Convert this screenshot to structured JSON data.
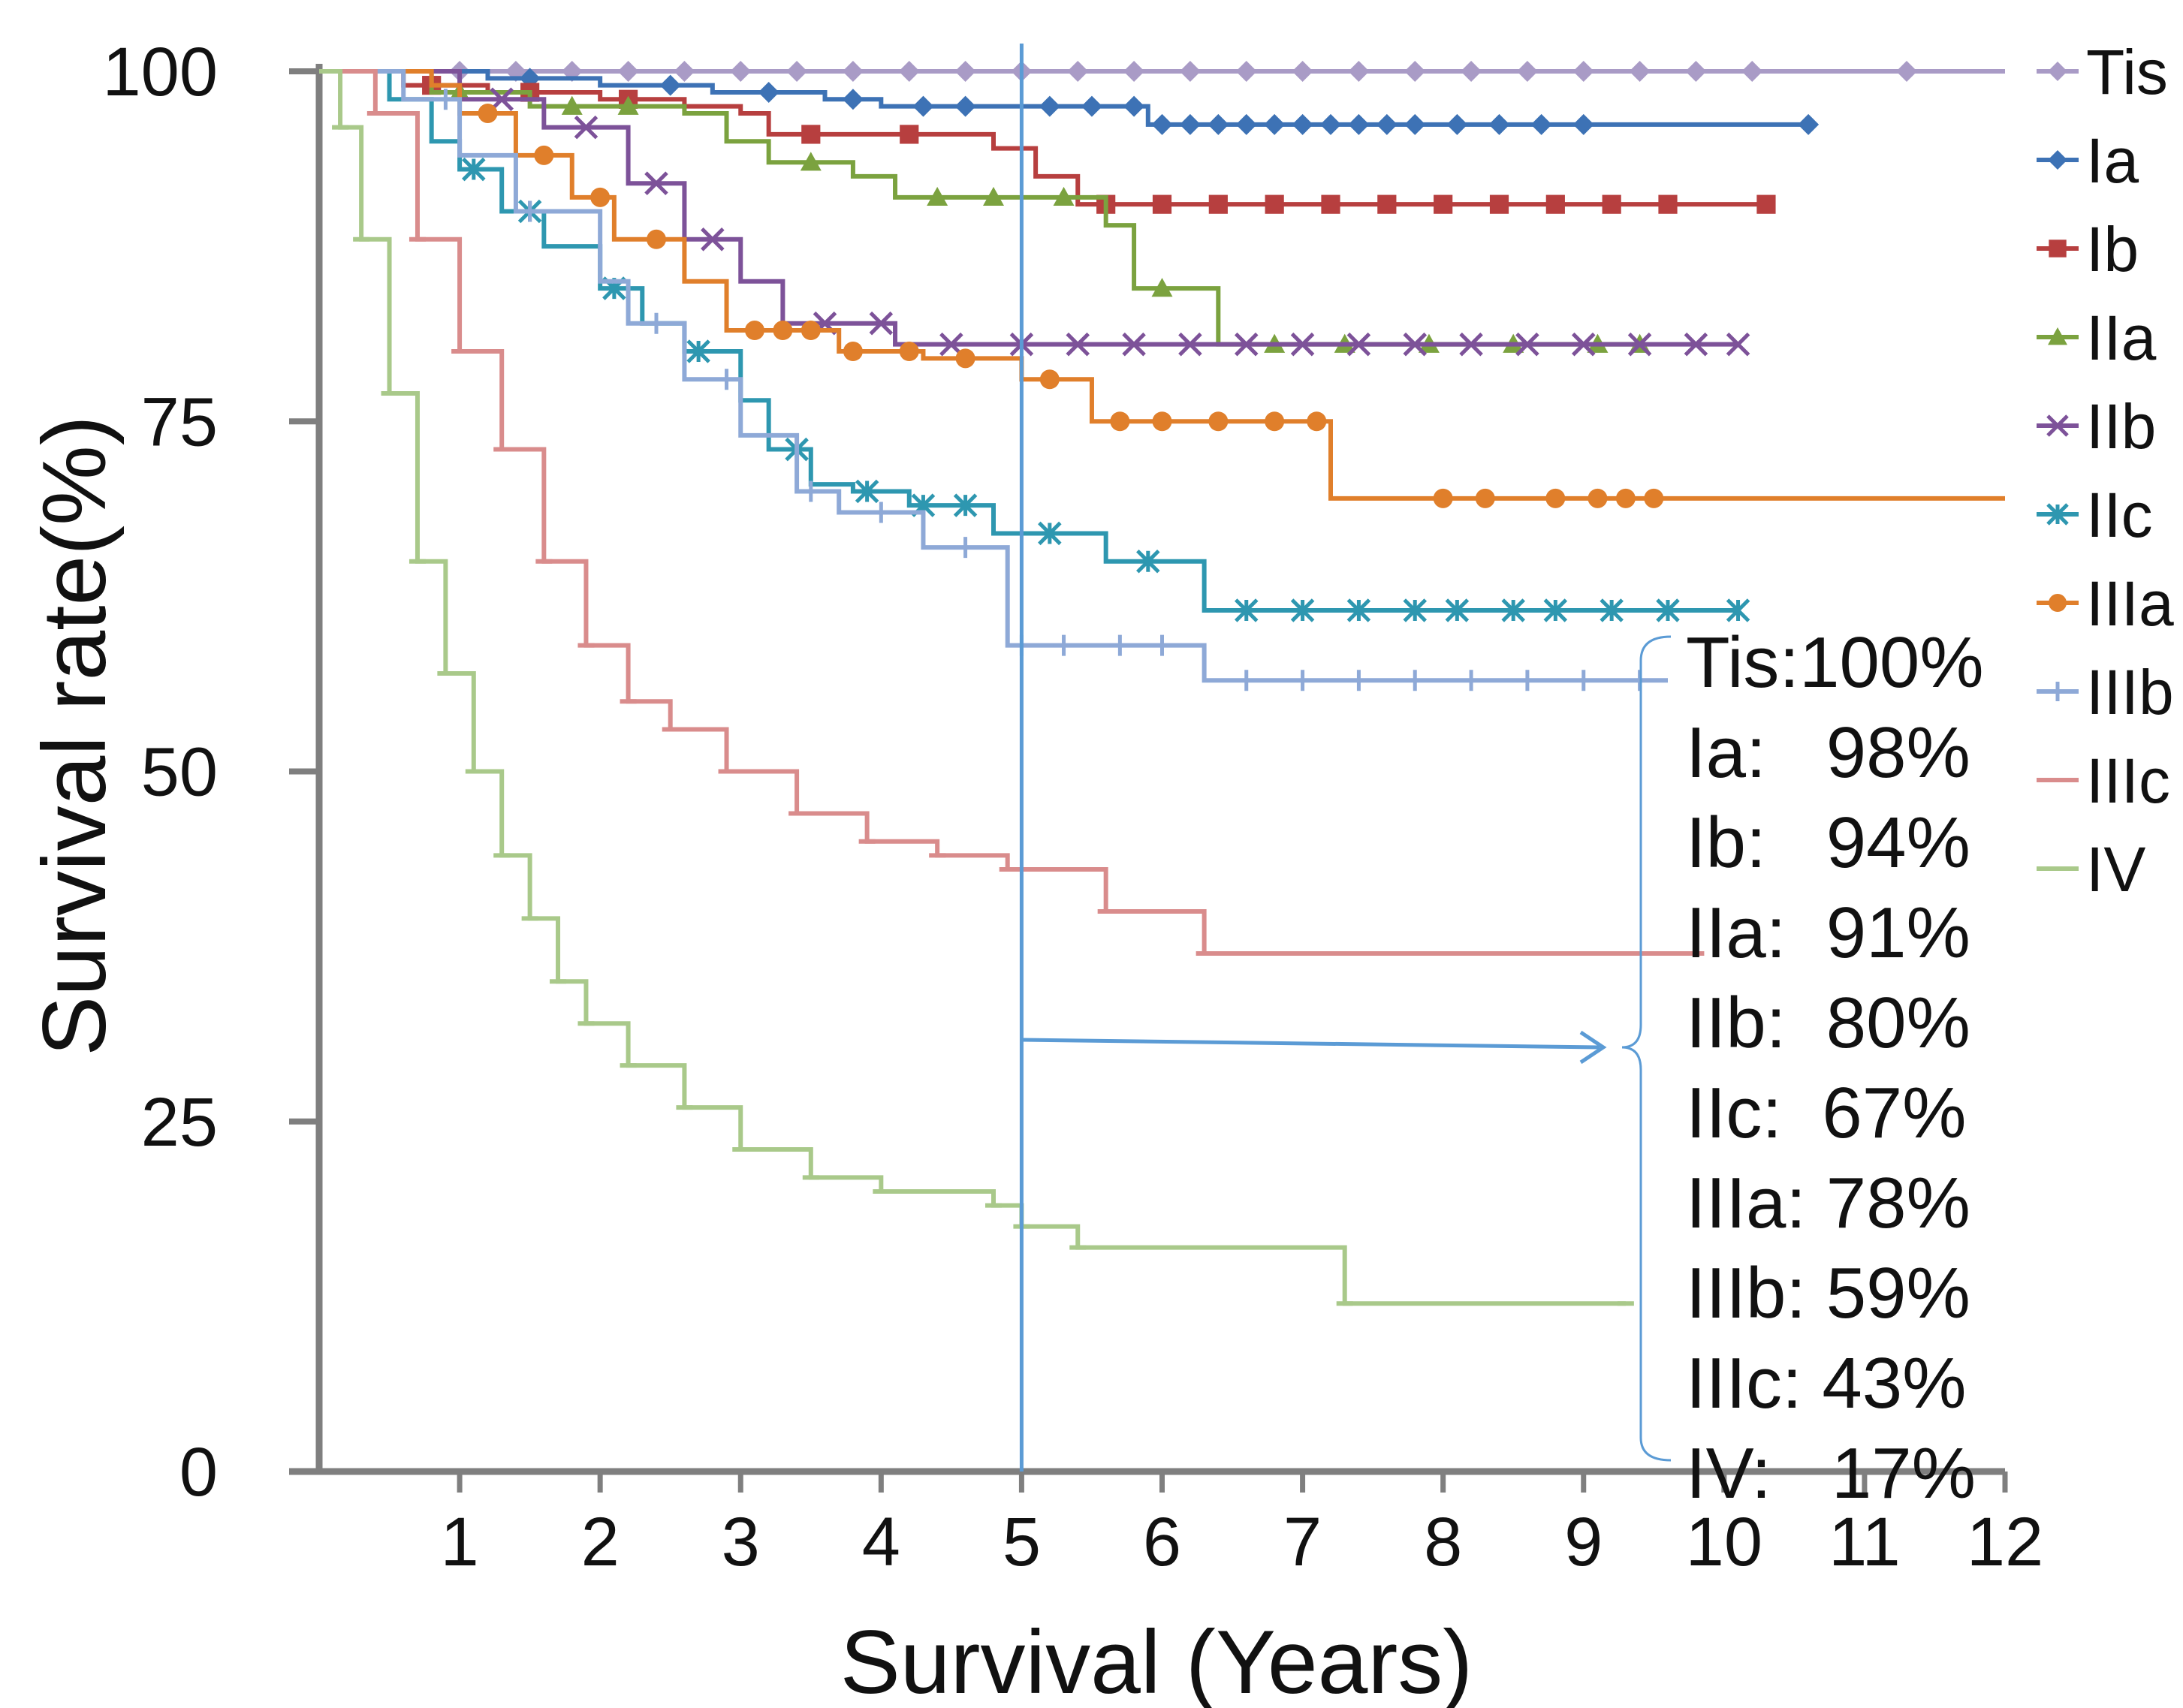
{
  "chart_data": {
    "type": "line",
    "title": "",
    "xlabel": "Survival (Years)",
    "ylabel": "Survival rate(%)",
    "xlim": [
      0,
      12
    ],
    "ylim": [
      0,
      100
    ],
    "x_ticks": [
      1,
      2,
      3,
      4,
      5,
      6,
      7,
      8,
      9,
      10,
      11,
      12
    ],
    "y_ticks": [
      0,
      25,
      50,
      75,
      100
    ],
    "grid": false,
    "legend_position": "right",
    "reference_line_x": 5,
    "series": [
      {
        "name": "Tis",
        "color": "#a99bc6",
        "marker": "diamond",
        "x": [
          0,
          12
        ],
        "y": [
          100,
          100
        ],
        "censor_x": [
          1,
          1.4,
          1.8,
          2.2,
          2.6,
          3,
          3.4,
          3.8,
          4.2,
          4.6,
          5,
          5.4,
          5.8,
          6.2,
          6.6,
          7,
          7.4,
          7.8,
          8.2,
          8.6,
          9,
          9.4,
          9.8,
          10.2,
          11.3
        ]
      },
      {
        "name": "Ia",
        "color": "#3d72b5",
        "marker": "diamond",
        "x": [
          0,
          1.2,
          2.0,
          2.8,
          3.6,
          4.0,
          5.0,
          5.9,
          10.6
        ],
        "y": [
          100,
          99.5,
          99,
          98.5,
          98,
          97.5,
          97.5,
          96.2,
          96.2
        ],
        "censor_x": [
          1.5,
          2.5,
          3.2,
          3.8,
          4.3,
          4.6,
          5.2,
          5.5,
          5.8,
          6.0,
          6.2,
          6.4,
          6.6,
          6.8,
          7.0,
          7.2,
          7.4,
          7.6,
          7.8,
          8.1,
          8.4,
          8.7,
          9.0,
          10.6
        ]
      },
      {
        "name": "Ib",
        "color": "#b73f3f",
        "marker": "square",
        "x": [
          0,
          0.6,
          1.2,
          2.0,
          2.6,
          3.0,
          3.2,
          4.8,
          5.1,
          5.4,
          10.3
        ],
        "y": [
          100,
          99,
          98.5,
          98,
          97.5,
          97,
          95.5,
          94.5,
          92.5,
          90.5,
          90.5
        ],
        "censor_x": [
          0.8,
          1.5,
          2.2,
          3.5,
          4.2,
          5.6,
          6.0,
          6.4,
          6.8,
          7.2,
          7.6,
          8.0,
          8.4,
          8.8,
          9.2,
          9.6,
          10.3
        ]
      },
      {
        "name": "IIa",
        "color": "#7ba23f",
        "marker": "triangle",
        "x": [
          0,
          0.8,
          1.5,
          2.6,
          2.9,
          3.2,
          3.8,
          4.1,
          5.0,
          5.6,
          5.8,
          6.4,
          9.4
        ],
        "y": [
          100,
          98.5,
          97.5,
          97,
          95,
          93.5,
          92.5,
          91,
          91,
          89,
          84.5,
          80.5,
          80.5
        ],
        "censor_x": [
          1.0,
          1.8,
          2.2,
          3.5,
          4.4,
          4.8,
          5.3,
          6.0,
          6.8,
          7.3,
          7.9,
          8.5,
          9.1,
          9.4
        ]
      },
      {
        "name": "IIb",
        "color": "#7d5299",
        "marker": "x",
        "x": [
          0,
          1.0,
          1.6,
          2.2,
          2.6,
          3.0,
          3.3,
          4.1,
          10.1
        ],
        "y": [
          100,
          98,
          96,
          92,
          88,
          85,
          82,
          80.5,
          80.5
        ],
        "censor_x": [
          1.3,
          1.9,
          2.4,
          2.8,
          3.6,
          4.0,
          4.5,
          5.0,
          5.4,
          5.8,
          6.2,
          6.6,
          7.0,
          7.4,
          7.8,
          8.2,
          8.6,
          9.0,
          9.4,
          9.8,
          10.1
        ]
      },
      {
        "name": "IIc",
        "color": "#2e97b0",
        "marker": "asterisk",
        "x": [
          0,
          0.5,
          0.8,
          1.0,
          1.3,
          1.6,
          2.0,
          2.3,
          2.6,
          3.0,
          3.2,
          3.5,
          3.8,
          4.2,
          4.8,
          5.6,
          6.3,
          10.1
        ],
        "y": [
          100,
          98,
          95,
          93,
          90,
          87.5,
          84.5,
          82,
          80,
          76.5,
          73,
          70.5,
          70,
          69,
          67,
          65,
          61.5,
          61.5
        ],
        "censor_x": [
          1.1,
          1.5,
          2.1,
          2.7,
          3.4,
          3.9,
          4.3,
          4.6,
          5.2,
          5.9,
          6.6,
          7.0,
          7.4,
          7.8,
          8.1,
          8.5,
          8.8,
          9.2,
          9.6,
          10.1
        ]
      },
      {
        "name": "IIIa",
        "color": "#e07f2b",
        "marker": "circle",
        "x": [
          0,
          0.8,
          1.0,
          1.4,
          1.8,
          2.1,
          2.6,
          2.9,
          3.7,
          4.3,
          5.0,
          5.5,
          7.2,
          12.0
        ],
        "y": [
          100,
          99,
          97,
          94,
          91,
          88,
          85,
          81.5,
          80,
          79.5,
          78,
          75,
          69.5,
          69.5
        ],
        "censor_x": [
          1.2,
          1.6,
          2.0,
          2.4,
          3.1,
          3.3,
          3.5,
          3.8,
          4.2,
          4.6,
          5.2,
          5.7,
          6.0,
          6.4,
          6.8,
          7.1,
          8.0,
          8.3,
          8.8,
          9.1,
          9.3,
          9.5
        ]
      },
      {
        "name": "IIIb",
        "color": "#8ea9d7",
        "marker": "plus",
        "x": [
          0,
          0.6,
          1.0,
          1.4,
          2.0,
          2.2,
          2.6,
          3.0,
          3.4,
          3.7,
          4.3,
          4.9,
          5.6,
          6.3,
          9.6
        ],
        "y": [
          100,
          98,
          94,
          90,
          85,
          82,
          78,
          74,
          70,
          68.5,
          66,
          59,
          59,
          56.5,
          56.5
        ],
        "censor_x": [
          0.9,
          1.5,
          2.4,
          2.9,
          3.5,
          4.0,
          4.6,
          5.0,
          5.3,
          5.7,
          6.0,
          6.6,
          7.0,
          7.4,
          7.8,
          8.2,
          8.6,
          9.0,
          9.4
        ]
      },
      {
        "name": "IIIc",
        "color": "#d98c8c",
        "marker": "dash",
        "x": [
          0,
          0.4,
          0.7,
          1.0,
          1.3,
          1.6,
          1.9,
          2.2,
          2.5,
          2.9,
          3.4,
          3.9,
          4.4,
          4.9,
          5.6,
          6.3,
          9.8
        ],
        "y": [
          100,
          97,
          88,
          80,
          73,
          65,
          59,
          55,
          53,
          50,
          47,
          45,
          44,
          43,
          40,
          37,
          37
        ],
        "censor_x": []
      },
      {
        "name": "IV",
        "color": "#a9c98a",
        "marker": "dash",
        "x": [
          0,
          0.15,
          0.3,
          0.5,
          0.7,
          0.9,
          1.1,
          1.3,
          1.5,
          1.7,
          1.9,
          2.2,
          2.6,
          3.0,
          3.5,
          4.0,
          4.8,
          5.0,
          5.4,
          7.3,
          9.3
        ],
        "y": [
          100,
          96,
          88,
          77,
          65,
          57,
          50,
          44,
          39.5,
          35,
          32,
          29,
          26,
          23,
          21,
          20,
          19,
          17.5,
          16,
          12,
          12
        ],
        "censor_x": []
      }
    ],
    "summary_at_5_years": [
      {
        "label": "Tis:100%"
      },
      {
        "label": "Ia:   98%"
      },
      {
        "label": "Ib:   94%"
      },
      {
        "label": "IIa:  91%"
      },
      {
        "label": "IIb:  80%"
      },
      {
        "label": "IIc:  67%"
      },
      {
        "label": "IIIa: 78%"
      },
      {
        "label": "IIIb: 59%"
      },
      {
        "label": "IIIc: 43%"
      },
      {
        "label": "IV:   17%"
      }
    ]
  }
}
